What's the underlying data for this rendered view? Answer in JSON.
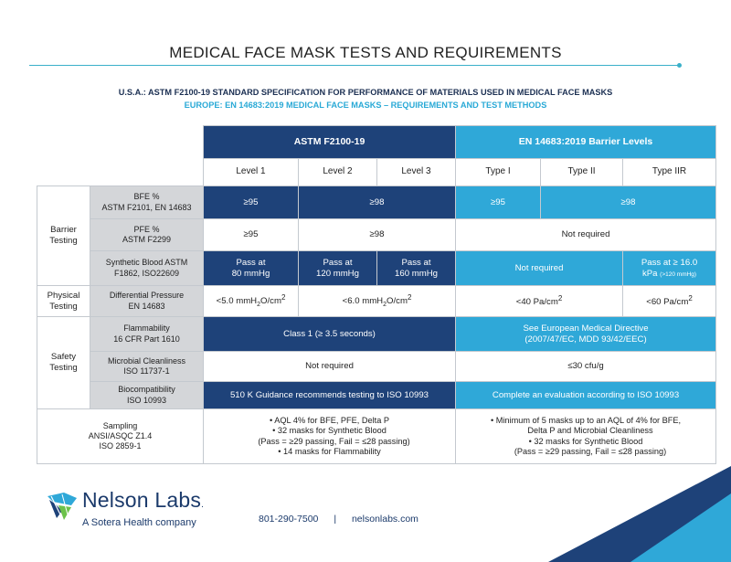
{
  "title": "MEDICAL FACE MASK TESTS AND REQUIREMENTS",
  "subtitle_us": "U.S.A.: ASTM F2100-19 STANDARD SPECIFICATION FOR PERFORMANCE OF MATERIALS USED IN MEDICAL FACE MASKS",
  "subtitle_eu": "EUROPE: EN 14683:2019 MEDICAL FACE MASKS – REQUIREMENTS AND TEST METHODS",
  "header": {
    "astm": "ASTM F2100-19",
    "en": "EN 14683:2019 Barrier Levels",
    "levels": [
      "Level 1",
      "Level 2",
      "Level 3",
      "Type I",
      "Type II",
      "Type IIR"
    ]
  },
  "categories": {
    "barrier": "Barrier Testing",
    "physical": "Physical Testing",
    "safety": "Safety Testing",
    "sampling": [
      "Sampling",
      "ANSI/ASQC Z1.4",
      "ISO 2859-1"
    ]
  },
  "tests": {
    "bfe": [
      "BFE %",
      "ASTM F2101, EN 14683"
    ],
    "pfe": [
      "PFE %",
      "ASTM F2299"
    ],
    "synthetic": [
      "Synthetic Blood ASTM",
      "F1862, ISO22609"
    ],
    "pressure": [
      "Differential Pressure",
      "EN 14683"
    ],
    "flammability": [
      "Flammability",
      "16 CFR Part 1610"
    ],
    "microbial": [
      "Microbial Cleanliness",
      "ISO 11737-1"
    ],
    "biocompat": [
      "Biocompatibility",
      "ISO 10993"
    ]
  },
  "values": {
    "bfe_l1": "≥95",
    "bfe_l23": "≥98",
    "bfe_t1": "≥95",
    "bfe_t2": "≥98",
    "pfe_l1": "≥95",
    "pfe_l23": "≥98",
    "pfe_en": "Not required",
    "syn_l1": [
      "Pass at",
      "80 mmHg"
    ],
    "syn_l2": [
      "Pass at",
      "120 mmHg"
    ],
    "syn_l3": [
      "Pass at",
      "160 mmHg"
    ],
    "syn_en": "Not required",
    "syn_iir": [
      "Pass at  ≥ 16.0",
      "kPa",
      "(>120 mmHg)"
    ],
    "dp_l1": [
      "<5.0 mmH",
      "2",
      "O/cm",
      "2"
    ],
    "dp_l23": [
      "<6.0 mmH",
      "2",
      "O/cm",
      "2"
    ],
    "dp_t12": [
      "<40 Pa/cm",
      "2"
    ],
    "dp_iir": [
      "<60 Pa/cm",
      "2"
    ],
    "flam_astm": "Class 1 (≥ 3.5 seconds)",
    "flam_en": [
      "See European Medical Directive",
      "(2007/47/EC, MDD 93/42/EEC)"
    ],
    "micro_astm": "Not required",
    "micro_en": "≤30 cfu/g",
    "bio_astm": "510 K Guidance recommends testing to ISO 10993",
    "bio_en": "Complete an evaluation according to ISO 10993"
  },
  "sampling": {
    "astm": [
      "AQL 4% for BFE, PFE, Delta P",
      "32 masks for Synthetic Blood",
      "(Pass = ≥29 passing, Fail = ≤28 passing)",
      "14 masks for Flammability"
    ],
    "en": [
      "Minimum of 5 masks up to an AQL of 4% for BFE,",
      "Delta P and Microbial Cleanliness",
      "32 masks for Synthetic Blood",
      "(Pass = ≥29 passing, Fail = ≤28 passing)"
    ]
  },
  "footer": {
    "brand": "Nelson Labs",
    "tm": ".",
    "tagline": "A Sotera Health company",
    "phone": "801-290-7500",
    "separator": "|",
    "website": "nelsonlabs.com"
  },
  "colors": {
    "navy": "#1e4279",
    "cyan": "#2fa8d8",
    "gray": "#d4d6d9"
  }
}
